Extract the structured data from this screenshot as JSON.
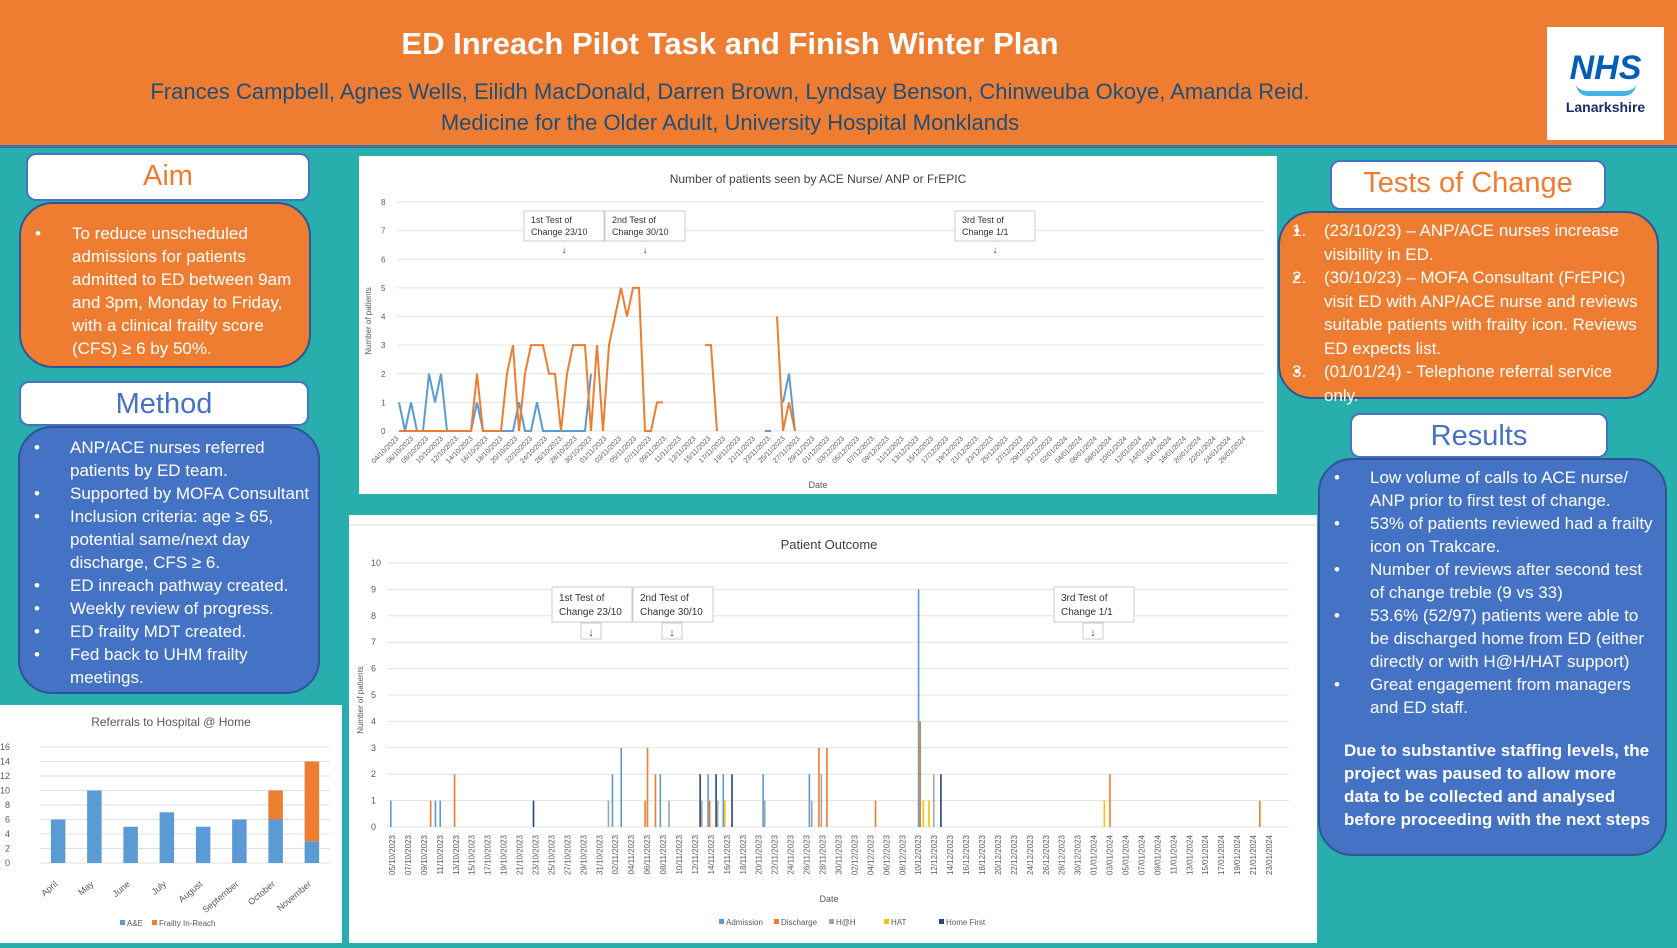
{
  "header": {
    "title": "ED Inreach Pilot  Task and Finish Winter Plan",
    "authors": "Frances Campbell, Agnes Wells, Eilidh MacDonald, Darren Brown, Lyndsay Benson, Chinweuba Okoye, Amanda Reid.",
    "department": "Medicine for the Older Adult, University Hospital Monklands",
    "logo_main": "NHS",
    "logo_sub": "Lanarkshire"
  },
  "aim": {
    "title": "Aim",
    "items": [
      "To reduce unscheduled admissions for patients admitted to ED between 9am and 3pm, Monday to Friday, with a clinical frailty score (CFS) ≥ 6 by 50%."
    ]
  },
  "method": {
    "title": "Method",
    "items": [
      "ANP/ACE nurses referred patients by ED team.",
      "Supported by MOFA Consultant",
      "Inclusion criteria: age ≥ 65, potential same/next day discharge, CFS ≥ 6.",
      "ED inreach pathway created.",
      "Weekly review of progress.",
      "ED frailty MDT created.",
      "Fed back to UHM frailty meetings."
    ]
  },
  "tests": {
    "title": "Tests of Change",
    "items": [
      {
        "n": "1.",
        "text": "(23/10/23) – ANP/ACE nurses increase visibility in ED."
      },
      {
        "n": "2.",
        "text": "(30/10/23) – MOFA Consultant (FrEPIC) visit ED with ANP/ACE nurse and reviews suitable patients with frailty icon. Reviews ED expects list."
      },
      {
        "n": "3.",
        "text": "(01/01/24) -  Telephone referral service only."
      }
    ]
  },
  "results": {
    "title": "Results",
    "items": [
      "Low volume of calls to ACE nurse/ ANP prior to first test of change.",
      "53% of patients reviewed had a frailty icon on Trakcare.",
      "Number of reviews after second test of change treble (9 vs 33)",
      "53.6% (52/97) patients were able to be discharged home from ED (either directly or with H@H/HAT support)",
      "Great engagement from managers and ED staff."
    ],
    "conclusion": "Due to substantive staffing levels, the project was paused to allow more data to be collected and analysed before proceeding with the next steps"
  },
  "colors": {
    "orange": "#EE7D31",
    "blue": "#4472C4",
    "series_blue": "#5B9BD5",
    "series_orange": "#ED7D31",
    "grey": "#A5A5A5",
    "yellow": "#FFC000",
    "navy": "#264478"
  },
  "chart_data": [
    {
      "type": "bar",
      "title": "Referrals to Hospital @ Home",
      "categories": [
        "April",
        "May",
        "June",
        "July",
        "August",
        "September",
        "October",
        "November"
      ],
      "series": [
        {
          "name": "A&E",
          "values": [
            6,
            10,
            5,
            7,
            5,
            6,
            6,
            3
          ]
        },
        {
          "name": "Frailty In-Reach",
          "values": [
            0,
            0,
            0,
            0,
            0,
            0,
            4,
            11
          ]
        }
      ],
      "stacked": true,
      "ylim": [
        0,
        16
      ],
      "yticks": [
        "0",
        "2",
        "4",
        "6",
        "8",
        "10",
        "12",
        "14",
        "16"
      ],
      "legend": "bottom"
    },
    {
      "type": "line",
      "title": "Number of patients seen by ACE Nurse/ ANP or FrEPIC",
      "xlabel": "Date",
      "ylabel": "Number of patients",
      "ylim": [
        0,
        8
      ],
      "yticks": [
        "0",
        "1",
        "2",
        "3",
        "4",
        "5",
        "6",
        "7",
        "8"
      ],
      "x_count": 135,
      "xticks": [
        "04/10/2023",
        "06/10/2023",
        "08/10/2023",
        "10/10/2023",
        "12/10/2023",
        "14/10/2023",
        "16/10/2023",
        "18/10/2023",
        "20/10/2023",
        "22/10/2023",
        "24/10/2023",
        "26/10/2023",
        "28/10/2023",
        "30/10/2023",
        "01/11/2023",
        "03/11/2023",
        "05/11/2023",
        "07/11/2023",
        "09/11/2023",
        "11/11/2023",
        "13/11/2023",
        "15/11/2023",
        "17/11/2023",
        "19/11/2023",
        "21/11/2023",
        "23/11/2023",
        "25/11/2023",
        "27/11/2023",
        "29/11/2023",
        "01/12/2023",
        "03/12/2023",
        "05/12/2023",
        "07/12/2023",
        "09/12/2023",
        "11/12/2023",
        "13/12/2023",
        "15/12/2023",
        "17/12/2023",
        "19/12/2023",
        "21/12/2023",
        "23/12/2023",
        "25/12/2023",
        "27/12/2023",
        "29/12/2023",
        "31/12/2023",
        "02/01/2024",
        "04/01/2024",
        "06/01/2024",
        "08/01/2024",
        "10/01/2024",
        "12/01/2024",
        "14/01/2024",
        "16/01/2024",
        "18/01/2024",
        "20/01/2024",
        "22/01/2024",
        "24/01/2024",
        "26/01/2024"
      ],
      "series": [
        {
          "name": "ACE Nurse/ ANP",
          "color": "#5B9BD5",
          "segments": [
            [
              [
                0,
                1
              ],
              [
                1,
                0
              ],
              [
                2,
                1
              ],
              [
                3,
                0
              ],
              [
                4,
                0
              ],
              [
                5,
                2
              ],
              [
                6,
                1
              ],
              [
                7,
                2
              ],
              [
                8,
                0
              ],
              [
                9,
                0
              ],
              [
                10,
                0
              ],
              [
                11,
                0
              ],
              [
                12,
                0
              ],
              [
                13,
                1
              ],
              [
                14,
                0
              ],
              [
                15,
                0
              ],
              [
                16,
                0
              ],
              [
                17,
                0
              ],
              [
                18,
                0
              ],
              [
                19,
                0
              ],
              [
                20,
                1
              ],
              [
                21,
                0
              ],
              [
                22,
                0
              ],
              [
                23,
                1
              ],
              [
                24,
                0
              ],
              [
                25,
                0
              ],
              [
                26,
                0
              ],
              [
                27,
                0
              ],
              [
                28,
                0
              ],
              [
                29,
                0
              ],
              [
                30,
                0
              ],
              [
                31,
                0
              ],
              [
                32,
                2
              ]
            ],
            [
              [
                61,
                0
              ],
              [
                62,
                0
              ]
            ],
            [
              [
                64,
                1
              ],
              [
                65,
                2
              ],
              [
                66,
                0
              ]
            ]
          ]
        },
        {
          "name": "FrEPIC",
          "color": "#ED7D31",
          "segments": [
            [
              [
                0,
                0
              ],
              [
                1,
                0
              ],
              [
                2,
                0
              ],
              [
                3,
                0
              ],
              [
                4,
                0
              ],
              [
                5,
                0
              ],
              [
                6,
                0
              ],
              [
                7,
                0
              ],
              [
                8,
                0
              ],
              [
                9,
                0
              ],
              [
                10,
                0
              ],
              [
                11,
                0
              ],
              [
                12,
                0
              ],
              [
                13,
                2
              ],
              [
                14,
                0
              ],
              [
                15,
                0
              ],
              [
                16,
                0
              ],
              [
                17,
                0
              ],
              [
                18,
                2
              ],
              [
                19,
                3
              ],
              [
                20,
                0
              ],
              [
                21,
                2
              ],
              [
                22,
                3
              ],
              [
                23,
                3
              ],
              [
                24,
                3
              ],
              [
                25,
                2
              ],
              [
                26,
                2
              ],
              [
                27,
                0
              ],
              [
                28,
                2
              ],
              [
                29,
                3
              ],
              [
                30,
                3
              ],
              [
                31,
                3
              ],
              [
                32,
                0
              ],
              [
                33,
                3
              ],
              [
                34,
                0
              ],
              [
                35,
                3
              ],
              [
                36,
                4
              ],
              [
                37,
                5
              ],
              [
                38,
                4
              ],
              [
                39,
                5
              ],
              [
                40,
                5
              ],
              [
                41,
                0
              ],
              [
                42,
                0
              ],
              [
                43,
                1
              ],
              [
                44,
                1
              ]
            ],
            [
              [
                51,
                3
              ],
              [
                52,
                3
              ],
              [
                53,
                0
              ]
            ],
            [
              [
                63,
                4
              ],
              [
                64,
                0
              ],
              [
                65,
                1
              ],
              [
                66,
                0
              ]
            ]
          ]
        }
      ],
      "annotations": [
        {
          "text1": "1st Test of",
          "text2": "Change 23/10"
        },
        {
          "text1": "2nd Test of",
          "text2": "Change 30/10"
        },
        {
          "text1": "3rd Test of",
          "text2": "Change 1/1"
        }
      ],
      "arrow": "↓"
    },
    {
      "type": "bar",
      "title": "Patient Outcome",
      "xlabel": "Date",
      "ylabel": "Number of patients",
      "ylim": [
        0,
        10
      ],
      "yticks": [
        "0",
        "1",
        "2",
        "3",
        "4",
        "5",
        "6",
        "7",
        "8",
        "9",
        "10"
      ],
      "x_days": 110,
      "xticks": [
        "05/10/2023",
        "07/10/2023",
        "09/10/2023",
        "11/10/2023",
        "13/10/2023",
        "15/10/2023",
        "17/10/2023",
        "19/10/2023",
        "21/10/2023",
        "23/10/2023",
        "25/10/2023",
        "27/10/2023",
        "29/10/2023",
        "31/10/2023",
        "02/11/2023",
        "04/11/2023",
        "06/11/2023",
        "08/11/2023",
        "10/11/2023",
        "12/11/2023",
        "14/11/2023",
        "16/11/2023",
        "18/11/2023",
        "20/11/2023",
        "22/11/2023",
        "24/11/2023",
        "26/11/2023",
        "28/11/2023",
        "30/11/2023",
        "02/12/2023",
        "04/12/2023",
        "06/12/2023",
        "08/12/2023",
        "10/12/2023",
        "12/12/2023",
        "14/12/2023",
        "16/12/2023",
        "18/12/2023",
        "20/12/2023",
        "22/12/2023",
        "24/12/2023",
        "26/12/2023",
        "28/12/2023",
        "30/12/2023",
        "01/01/2024",
        "03/01/2024",
        "05/01/2024",
        "07/01/2024",
        "09/01/2024",
        "11/01/2024",
        "13/01/2024",
        "15/01/2024",
        "17/01/2024",
        "19/01/2024",
        "21/01/2024",
        "23/01/2024"
      ],
      "legend_items": [
        {
          "name": "Admission",
          "color": "#5B9BD5"
        },
        {
          "name": "Discharge",
          "color": "#ED7D31"
        },
        {
          "name": "H@H",
          "color": "#A5A5A5"
        },
        {
          "name": "HAT",
          "color": "#FFC000"
        },
        {
          "name": "Home First",
          "color": "#264478"
        }
      ],
      "points": [
        [
          0,
          0,
          1
        ],
        [
          5,
          1,
          1
        ],
        [
          5.6,
          0,
          1
        ],
        [
          6.2,
          0,
          1
        ],
        [
          8,
          1,
          2
        ],
        [
          17.9,
          4,
          1
        ],
        [
          27.3,
          2,
          1
        ],
        [
          27.8,
          0,
          2
        ],
        [
          28.9,
          0,
          3
        ],
        [
          31.9,
          1,
          1
        ],
        [
          32.2,
          1,
          3
        ],
        [
          33.2,
          1,
          2
        ],
        [
          33.8,
          0,
          2
        ],
        [
          34.9,
          2,
          1
        ],
        [
          38.8,
          4,
          2
        ],
        [
          39,
          2,
          1
        ],
        [
          39.8,
          0,
          2
        ],
        [
          40,
          1,
          1
        ],
        [
          40.8,
          4,
          2
        ],
        [
          41,
          2,
          1
        ],
        [
          41.7,
          0,
          2
        ],
        [
          41.9,
          3,
          1
        ],
        [
          42.8,
          4,
          2
        ],
        [
          46.7,
          0,
          2
        ],
        [
          46.9,
          2,
          1
        ],
        [
          52.5,
          0,
          2
        ],
        [
          52.8,
          2,
          1
        ],
        [
          53.7,
          1,
          3
        ],
        [
          54,
          2,
          2
        ],
        [
          54.7,
          1,
          3
        ],
        [
          60.8,
          1,
          1
        ],
        [
          66.2,
          0,
          9
        ],
        [
          66.4,
          1,
          4
        ],
        [
          66.8,
          3,
          1
        ],
        [
          67.5,
          3,
          1
        ],
        [
          68.1,
          2,
          2
        ],
        [
          69,
          4,
          2
        ],
        [
          89.5,
          3,
          1
        ],
        [
          90.2,
          1,
          2
        ],
        [
          109,
          1,
          1
        ]
      ],
      "annotations": [
        {
          "text1": "1st Test of",
          "text2": "Change 23/10"
        },
        {
          "text1": "2nd Test of",
          "text2": "Change 30/10"
        },
        {
          "text1": "3rd Test of",
          "text2": "Change 1/1"
        }
      ],
      "arrow": "↓"
    }
  ]
}
